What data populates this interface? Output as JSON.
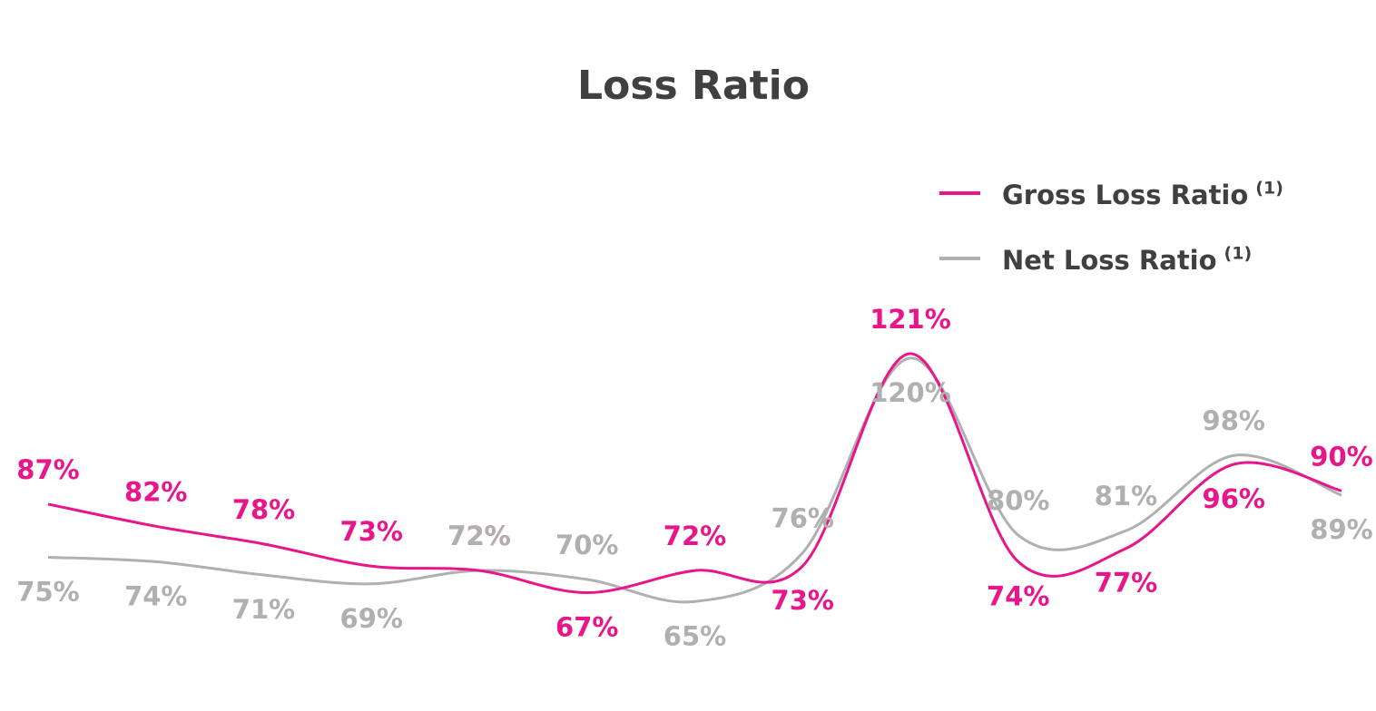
{
  "chart_data": {
    "type": "line",
    "title": "Loss Ratio",
    "categories": [
      null,
      null,
      null,
      null,
      null,
      null,
      null,
      null,
      null,
      null,
      null,
      null,
      null
    ],
    "legend": "top-right",
    "series": [
      {
        "name": "Gross Loss Ratio",
        "superscript": "(1)",
        "color": "#e8168a",
        "values": [
          87,
          82,
          78,
          73,
          72,
          67,
          72,
          73,
          121,
          74,
          77,
          96,
          90
        ],
        "value_labels": [
          "87%",
          "82%",
          "78%",
          "73%",
          "72%",
          "67%",
          "72%",
          "73%",
          "121%",
          "74%",
          "77%",
          "96%",
          "90%"
        ]
      },
      {
        "name": "Net Loss Ratio",
        "superscript": "(1)",
        "color": "#b0b0b0",
        "values": [
          75,
          74,
          71,
          69,
          72,
          70,
          65,
          76,
          120,
          80,
          81,
          98,
          89
        ],
        "value_labels": [
          "75%",
          "74%",
          "71%",
          "69%",
          "72%",
          "70%",
          "65%",
          "76%",
          "120%",
          "80%",
          "81%",
          "98%",
          "89%"
        ]
      }
    ]
  }
}
